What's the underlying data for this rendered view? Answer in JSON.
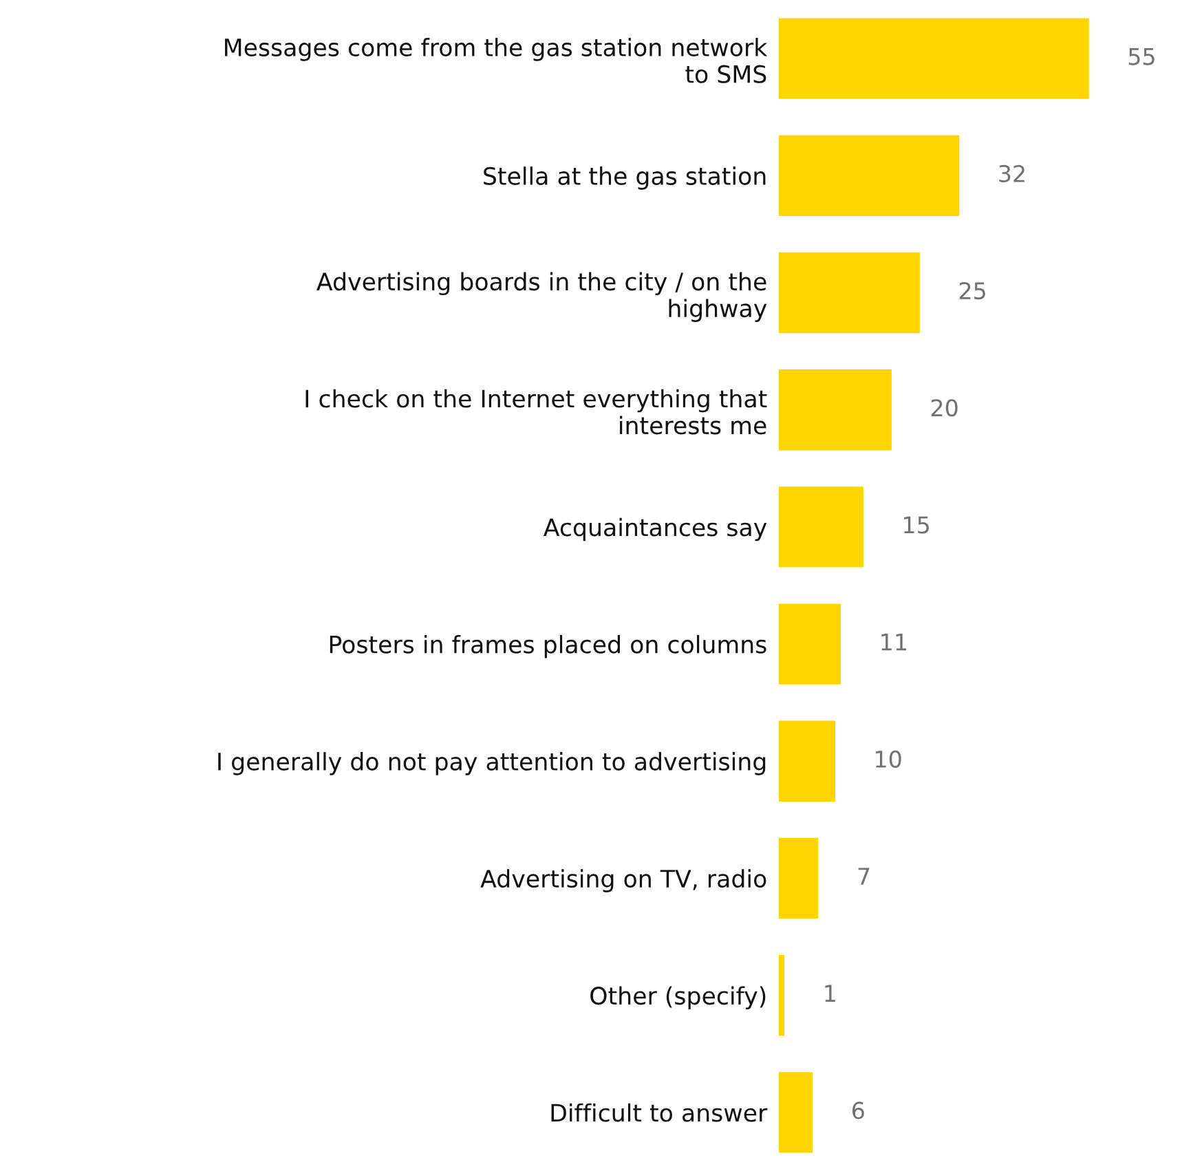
{
  "chart_data": {
    "type": "bar",
    "orientation": "horizontal",
    "data_labels": true,
    "grid": false,
    "legend": false,
    "tick_labels": "y",
    "categories": [
      "Messages come from the gas station network\nto SMS",
      "Stella at the gas station",
      "Advertising boards in the city / on the\nhighway",
      "I check on the Internet everything that\ninterests me",
      "Acquaintances say",
      "Posters in frames placed on columns",
      "I generally do not pay attention to advertising",
      "Advertising on TV, radio",
      "Other (specify)",
      "Difficult to answer"
    ],
    "values": [
      55,
      32,
      25,
      20,
      15,
      11,
      10,
      7,
      1,
      6
    ],
    "color": "#ffd500"
  }
}
